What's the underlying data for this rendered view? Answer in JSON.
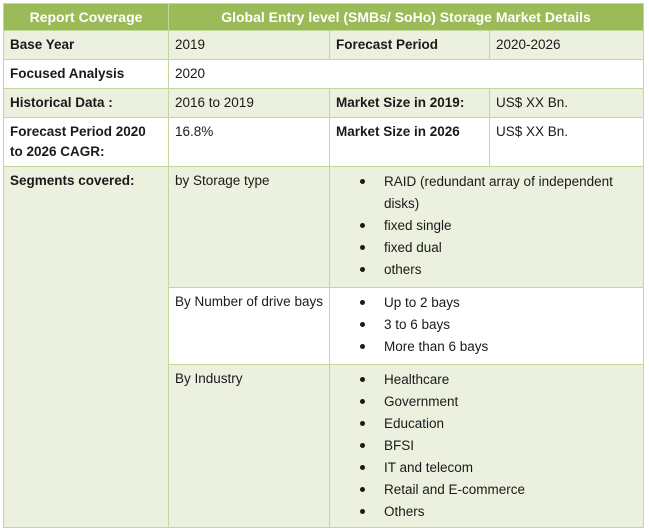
{
  "header": {
    "col1": "Report Coverage",
    "col2": "Global Entry level (SMBs/ SoHo) Storage Market Details"
  },
  "rows": {
    "base_year_label": "Base Year",
    "base_year_value": "2019",
    "forecast_period_label": "Forecast Period",
    "forecast_period_value": "2020-2026",
    "focused_analysis_label": "Focused Analysis",
    "focused_analysis_value": "2020",
    "historical_label": "Historical Data :",
    "historical_value": "2016 to 2019",
    "market_2019_label": "Market Size in 2019:",
    "market_2019_value": "US$ XX Bn.",
    "cagr_label": "Forecast Period 2020 to 2026 CAGR:",
    "cagr_value": "16.8%",
    "market_2026_label": "Market Size in 2026",
    "market_2026_value": "US$ XX Bn."
  },
  "segments": {
    "label": "Segments covered:",
    "groups": [
      {
        "name": "by Storage type",
        "items": [
          "RAID (redundant array of independent disks)",
          "fixed single",
          "fixed dual",
          "others"
        ]
      },
      {
        "name": "By Number of drive bays",
        "items": [
          "Up to 2 bays",
          "3 to 6 bays",
          "More than 6 bays"
        ]
      },
      {
        "name": "By Industry",
        "items": [
          "Healthcare",
          "Government",
          "Education",
          "BFSI",
          "IT and telecom",
          "Retail and E-commerce",
          "Others"
        ]
      }
    ]
  }
}
